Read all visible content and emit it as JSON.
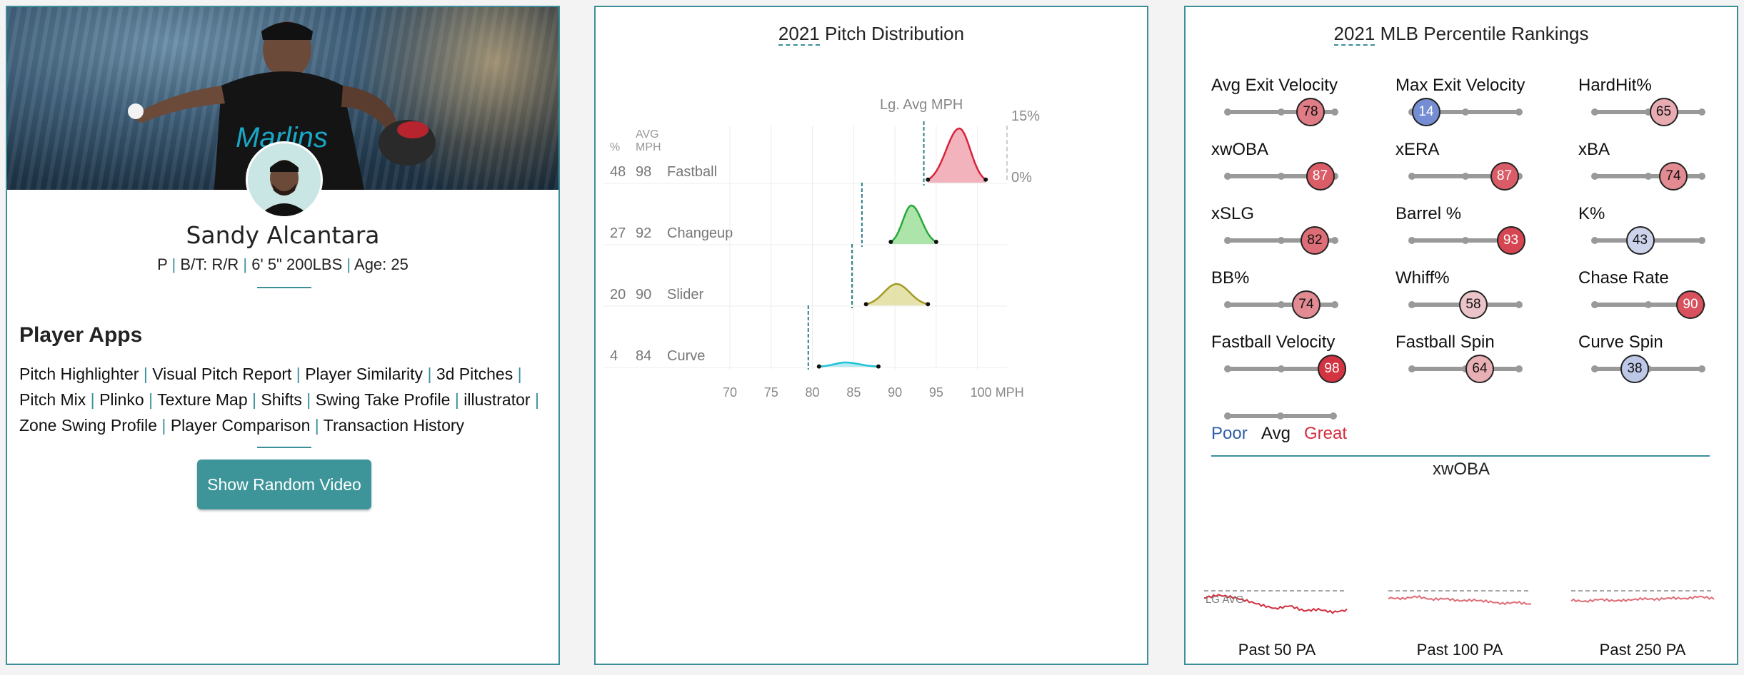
{
  "player": {
    "name": "Sandy Alcantara",
    "position": "P",
    "bat_throw": "B/T: R/R",
    "height_weight": "6' 5\" 200LBS",
    "age": "Age: 25"
  },
  "apps": {
    "title": "Player Apps",
    "links": [
      "Pitch Highlighter",
      "Visual Pitch Report",
      "Player Similarity",
      "3d Pitches",
      "Pitch Mix",
      "Plinko",
      "Texture Map",
      "Shifts",
      "Swing Take Profile",
      "illustrator",
      "Zone Swing Profile",
      "Player Comparison",
      "Transaction History"
    ],
    "button": "Show Random Video"
  },
  "pitch_dist": {
    "title_year": "2021",
    "title_rest": " Pitch Distribution",
    "lg_avg_label": "Lg. Avg MPH",
    "pct_top": "15%",
    "pct_bottom": "0%",
    "col_pct": "%",
    "col_avg_1": "AVG",
    "col_avg_2": "MPH",
    "pitches": [
      {
        "pct": "48",
        "mph": "98",
        "name": "Fastball",
        "color": "#d9233d",
        "fill": "#f0a6b1",
        "lg_avg": 93.5,
        "min": 94,
        "peak": 97.8,
        "max": 101
      },
      {
        "pct": "27",
        "mph": "92",
        "name": "Changeup",
        "color": "#28a83a",
        "fill": "#9edf9a",
        "lg_avg": 86,
        "min": 89.5,
        "peak": 92,
        "max": 95
      },
      {
        "pct": "20",
        "mph": "90",
        "name": "Slider",
        "color": "#a39b24",
        "fill": "#e2dd9c",
        "lg_avg": 84.8,
        "min": 86.5,
        "peak": 90.2,
        "max": 94
      },
      {
        "pct": "4",
        "mph": "84",
        "name": "Curve",
        "color": "#1fc2d6",
        "fill": "#a6e8f0",
        "lg_avg": 79.5,
        "min": 80.8,
        "peak": 84,
        "max": 88
      }
    ],
    "x_ticks": [
      "70",
      "75",
      "85",
      "90",
      "95",
      "100 MPH"
    ],
    "x_tick_80": "80"
  },
  "percentiles": {
    "title_year": "2021",
    "title_rest": " MLB Percentile Rankings",
    "metrics": [
      {
        "name": "Avg Exit Velocity",
        "value": "78"
      },
      {
        "name": "Max Exit Velocity",
        "value": "14"
      },
      {
        "name": "HardHit%",
        "value": "65"
      },
      {
        "name": "xwOBA",
        "value": "87"
      },
      {
        "name": "xERA",
        "value": "87"
      },
      {
        "name": "xBA",
        "value": "74"
      },
      {
        "name": "xSLG",
        "value": "82"
      },
      {
        "name": "Barrel %",
        "value": "93"
      },
      {
        "name": "K%",
        "value": "43"
      },
      {
        "name": "BB%",
        "value": "74"
      },
      {
        "name": "Whiff%",
        "value": "58"
      },
      {
        "name": "Chase Rate",
        "value": "90"
      },
      {
        "name": "Fastball Velocity",
        "value": "98"
      },
      {
        "name": "Fastball Spin",
        "value": "64"
      },
      {
        "name": "Curve Spin",
        "value": "38"
      }
    ],
    "legend": {
      "poor": "Poor",
      "avg": "Avg",
      "great": "Great",
      "poor_color": "#2f5fa8",
      "great_color": "#d22d3c"
    },
    "xwoba_title": "xwOBA",
    "lg_avg_tag": "LG AVG",
    "windows": [
      "Past 50 PA",
      "Past 100 PA",
      "Past 250 PA"
    ]
  }
}
